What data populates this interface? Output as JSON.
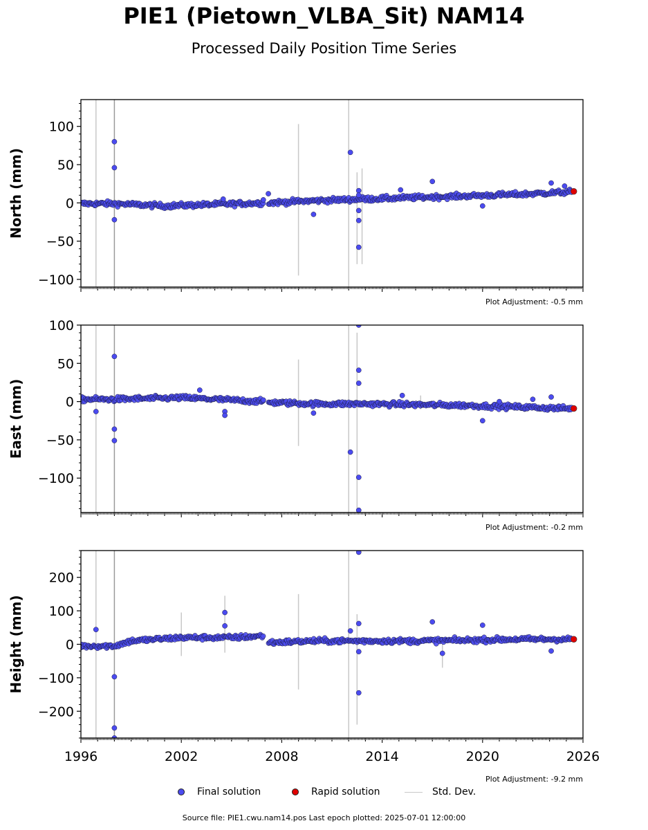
{
  "header": {
    "title": "PIE1 (Pietown_VLBA_Sit) NAM14",
    "subtitle": "Processed Daily Position Time Series"
  },
  "legend": {
    "final": "Final solution",
    "rapid": "Rapid solution",
    "std": "Std. Dev."
  },
  "footer": {
    "source": "Source file: PIE1.cwu.nam14.pos  Last epoch plotted: 2025-07-01 12:00:00"
  },
  "colors": {
    "final": "#4b4bf0",
    "rapid": "#e00000",
    "std": "#c8c8c8"
  },
  "chart_data": [
    {
      "type": "scatter",
      "ylabel": "North (mm)",
      "adjustment": "Plot Adjustment: -0.5 mm",
      "xlim": [
        1996,
        2026
      ],
      "ylim": [
        -110,
        135
      ],
      "yticks": [
        -100,
        -50,
        0,
        50,
        100
      ],
      "ytick_labels": [
        "−100",
        "−50",
        "0",
        "50",
        "100"
      ],
      "trend": [
        [
          1996.0,
          -1
        ],
        [
          1998.0,
          -1
        ],
        [
          2001.0,
          -4
        ],
        [
          2004.0,
          -2
        ],
        [
          2006.9,
          0
        ],
        [
          2007.2,
          0
        ],
        [
          2010.0,
          3
        ],
        [
          2013.0,
          5
        ],
        [
          2016.0,
          7
        ],
        [
          2019.0,
          9
        ],
        [
          2022.0,
          11
        ],
        [
          2025.0,
          14
        ],
        [
          2025.5,
          15
        ]
      ],
      "outliers": [
        [
          1998.0,
          80
        ],
        [
          1998.0,
          46
        ],
        [
          1998.0,
          -22
        ],
        [
          2004.5,
          5
        ],
        [
          2006.9,
          4
        ],
        [
          2007.2,
          12
        ],
        [
          2009.9,
          -15
        ],
        [
          2012.1,
          66
        ],
        [
          2012.6,
          16
        ],
        [
          2012.6,
          10
        ],
        [
          2012.6,
          -10
        ],
        [
          2012.6,
          -23
        ],
        [
          2012.6,
          -58
        ],
        [
          2015.1,
          17
        ],
        [
          2017.0,
          28
        ],
        [
          2020.0,
          -4
        ],
        [
          2024.1,
          26
        ],
        [
          2024.9,
          22
        ]
      ],
      "rapid": [
        [
          2025.45,
          15
        ]
      ],
      "stddev": [
        [
          1996.9,
          150,
          -110
        ],
        [
          1998.0,
          140,
          -110
        ],
        [
          2009.0,
          103,
          -95
        ],
        [
          2012.0,
          135,
          -110
        ],
        [
          2012.5,
          40,
          -80
        ],
        [
          2012.8,
          45,
          -80
        ]
      ]
    },
    {
      "type": "scatter",
      "ylabel": "East (mm)",
      "adjustment": "Plot Adjustment: -0.2 mm",
      "xlim": [
        1996,
        2026
      ],
      "ylim": [
        -145,
        100
      ],
      "yticks": [
        -100,
        -50,
        0,
        50,
        100
      ],
      "ytick_labels": [
        "−100",
        "−50",
        "0",
        "50",
        "100"
      ],
      "trend": [
        [
          1996.0,
          3
        ],
        [
          1998.0,
          3
        ],
        [
          2002.0,
          5
        ],
        [
          2005.0,
          2
        ],
        [
          2006.9,
          0
        ],
        [
          2007.2,
          -1
        ],
        [
          2010.0,
          -3
        ],
        [
          2013.0,
          -3
        ],
        [
          2016.0,
          -4
        ],
        [
          2019.0,
          -5
        ],
        [
          2022.0,
          -7
        ],
        [
          2025.0,
          -9
        ],
        [
          2025.5,
          -9
        ]
      ],
      "outliers": [
        [
          1996.9,
          -13
        ],
        [
          1998.0,
          59
        ],
        [
          1998.0,
          -36
        ],
        [
          1998.0,
          -51
        ],
        [
          2003.1,
          15
        ],
        [
          2004.6,
          -13
        ],
        [
          2004.6,
          -18
        ],
        [
          2006.9,
          2
        ],
        [
          2009.9,
          -15
        ],
        [
          2012.1,
          -66
        ],
        [
          2012.6,
          100
        ],
        [
          2012.6,
          41
        ],
        [
          2012.6,
          24
        ],
        [
          2012.6,
          -99
        ],
        [
          2012.6,
          -142
        ],
        [
          2015.2,
          8
        ],
        [
          2020.0,
          -25
        ],
        [
          2021.0,
          0
        ],
        [
          2023.0,
          3
        ],
        [
          2024.1,
          6
        ]
      ],
      "rapid": [
        [
          2025.45,
          -9
        ]
      ],
      "stddev": [
        [
          1996.9,
          140,
          -145
        ],
        [
          1998.0,
          140,
          -145
        ],
        [
          2009.0,
          55,
          -58
        ],
        [
          2012.0,
          100,
          -145
        ],
        [
          2012.5,
          90,
          -145
        ],
        [
          2016.3,
          8,
          -10
        ]
      ]
    },
    {
      "type": "scatter",
      "ylabel": "Height (mm)",
      "adjustment": "Plot Adjustment: -9.2 mm",
      "xlim": [
        1996,
        2026
      ],
      "ylim": [
        -280,
        280
      ],
      "yticks": [
        -200,
        -100,
        0,
        100,
        200
      ],
      "ytick_labels": [
        "−200",
        "−100",
        "0",
        "100",
        "200"
      ],
      "trend": [
        [
          1996.0,
          -5
        ],
        [
          1998.0,
          -5
        ],
        [
          1999.0,
          10
        ],
        [
          2002.0,
          20
        ],
        [
          2005.0,
          20
        ],
        [
          2006.9,
          25
        ],
        [
          2007.2,
          5
        ],
        [
          2010.0,
          10
        ],
        [
          2013.0,
          10
        ],
        [
          2016.0,
          10
        ],
        [
          2019.0,
          12
        ],
        [
          2022.0,
          15
        ],
        [
          2025.0,
          15
        ],
        [
          2025.5,
          15
        ]
      ],
      "outliers": [
        [
          1996.9,
          44
        ],
        [
          1998.0,
          -97
        ],
        [
          1998.0,
          -250
        ],
        [
          1998.0,
          -280
        ],
        [
          2004.6,
          95
        ],
        [
          2004.6,
          55
        ],
        [
          2012.1,
          40
        ],
        [
          2012.6,
          275
        ],
        [
          2012.6,
          62
        ],
        [
          2012.6,
          -22
        ],
        [
          2012.6,
          -145
        ],
        [
          2017.0,
          67
        ],
        [
          2017.6,
          -27
        ],
        [
          2020.0,
          57
        ],
        [
          2024.1,
          -20
        ]
      ],
      "rapid": [
        [
          2025.45,
          15
        ]
      ],
      "stddev": [
        [
          1996.9,
          280,
          -280
        ],
        [
          1998.0,
          280,
          -280
        ],
        [
          2002.0,
          95,
          -35
        ],
        [
          2004.6,
          145,
          -25
        ],
        [
          2009.0,
          150,
          -135
        ],
        [
          2012.0,
          280,
          -280
        ],
        [
          2012.5,
          90,
          -240
        ],
        [
          2017.6,
          10,
          -70
        ]
      ]
    }
  ]
}
